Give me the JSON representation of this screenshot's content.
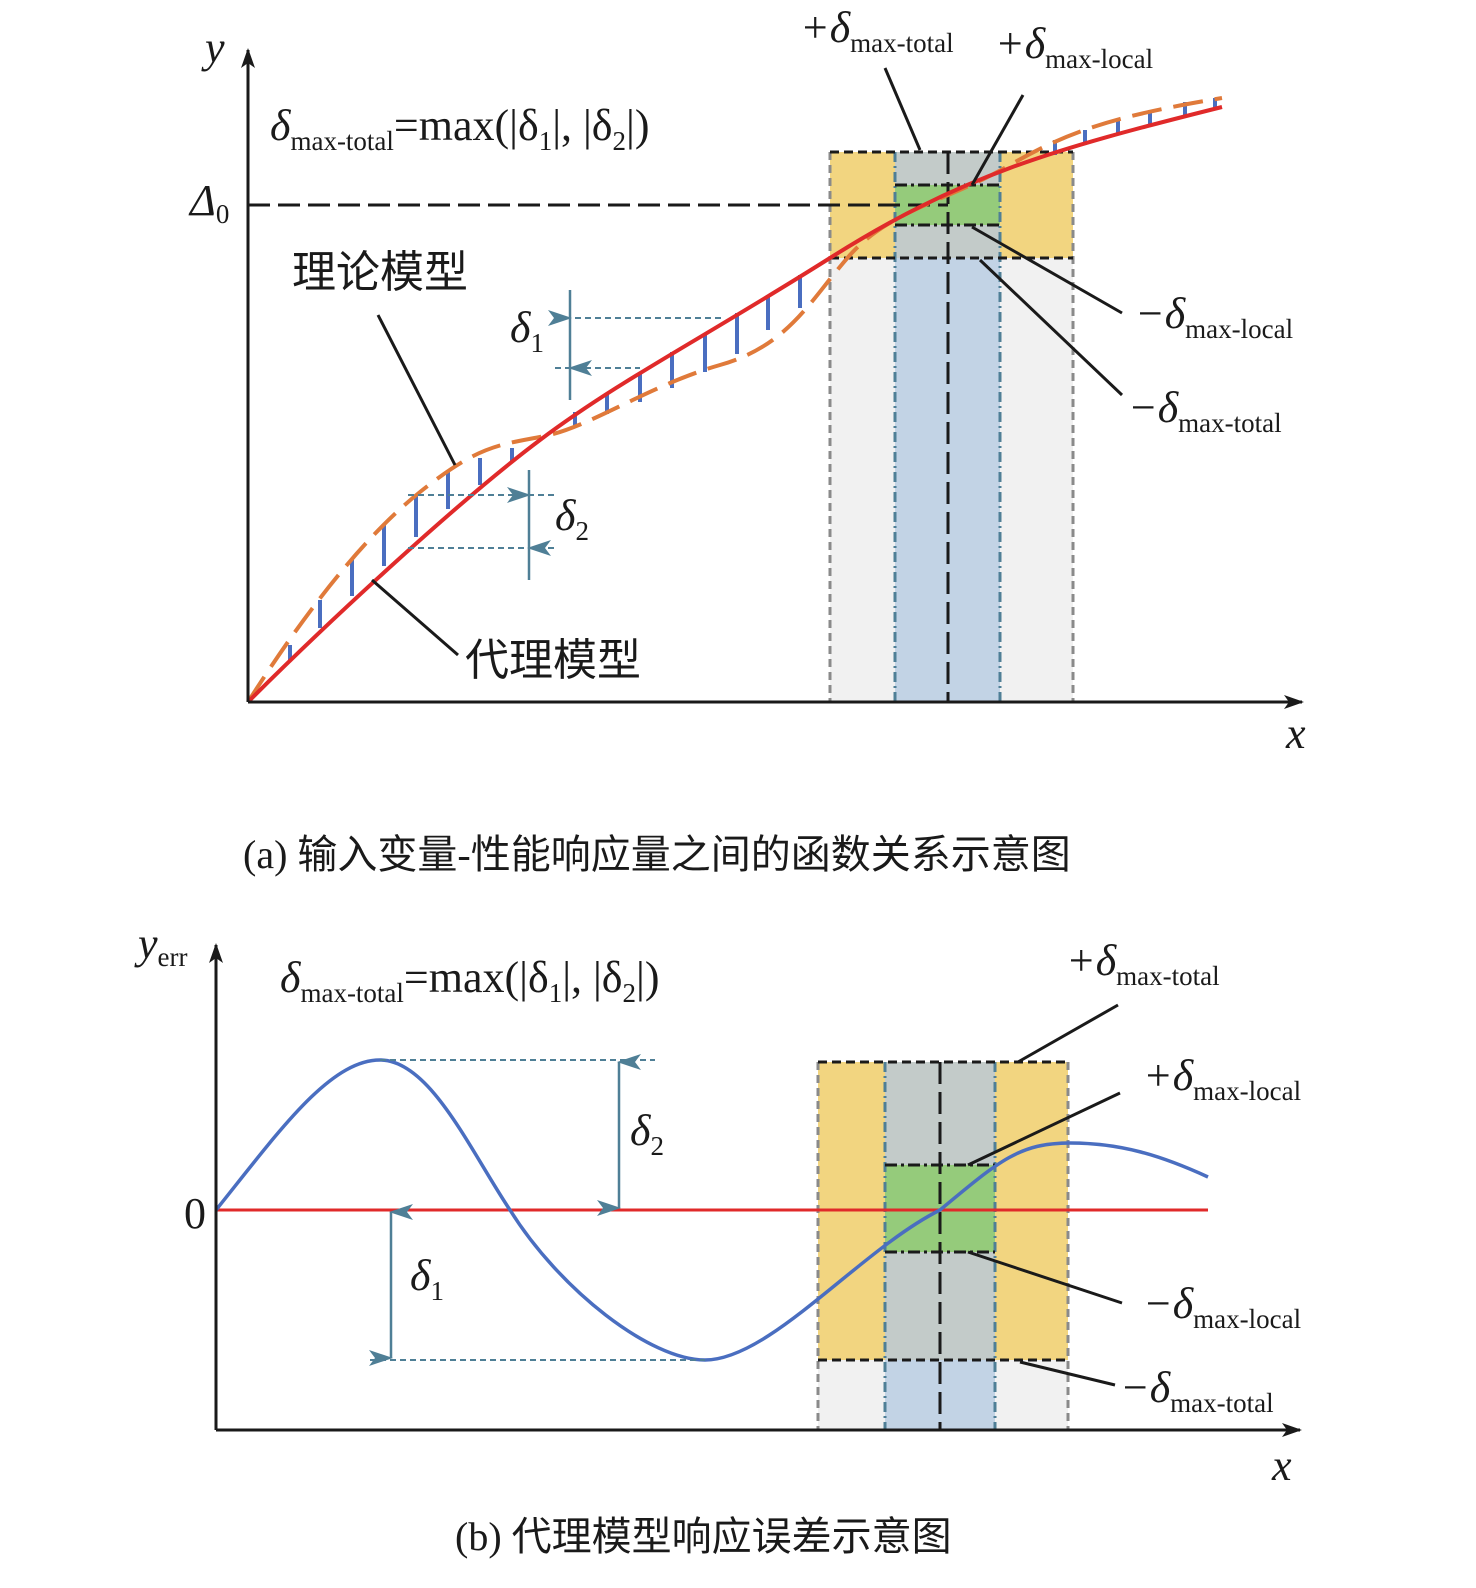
{
  "colors": {
    "theory": "#e02a2a",
    "surrogate": "#e07a3a",
    "error_bar": "#4a6ec0",
    "error_curve": "#4a6ec0",
    "yellow": "#f2d580",
    "greyblue": "#c3cbc9",
    "green": "#95cb7b",
    "blue": "#c2d3e5",
    "lightgrey": "#f1f1f1",
    "arrow": "#4f7f96"
  },
  "panel_a": {
    "y_axis": "y",
    "x_axis": "x",
    "delta0": "Δ",
    "delta0_sub": "0",
    "formula": {
      "d": "δ",
      "sub": "max-total",
      "rest": "=max(|δ",
      "s1": "1",
      "mid": "|, |δ",
      "s2": "2",
      "end": "|)"
    },
    "theory_label": "理论模型",
    "surrogate_label": "代理模型",
    "delta1": "δ",
    "delta1_sub": "1",
    "delta2": "δ",
    "delta2_sub": "2",
    "plus_total": "+δ",
    "plus_local": "+δ",
    "minus_local": "−δ",
    "minus_total": "−δ",
    "sub_total": "max-total",
    "sub_local": "max-local",
    "caption": "(a) 输入变量-性能响应量之间的函数关系示意图"
  },
  "panel_b": {
    "y_axis": "y",
    "y_sub": "err",
    "x_axis": "x",
    "zero": "0",
    "formula": {
      "d": "δ",
      "sub": "max-total",
      "rest": "=max(|δ",
      "s1": "1",
      "mid": "|, |δ",
      "s2": "2",
      "end": "|)"
    },
    "delta1": "δ",
    "delta1_sub": "1",
    "delta2": "δ",
    "delta2_sub": "2",
    "plus_total": "+δ",
    "plus_local": "+δ",
    "minus_local": "−δ",
    "minus_total": "−δ",
    "sub_total": "max-total",
    "sub_local": "max-local",
    "caption": "(b) 代理模型响应误差示意图"
  }
}
